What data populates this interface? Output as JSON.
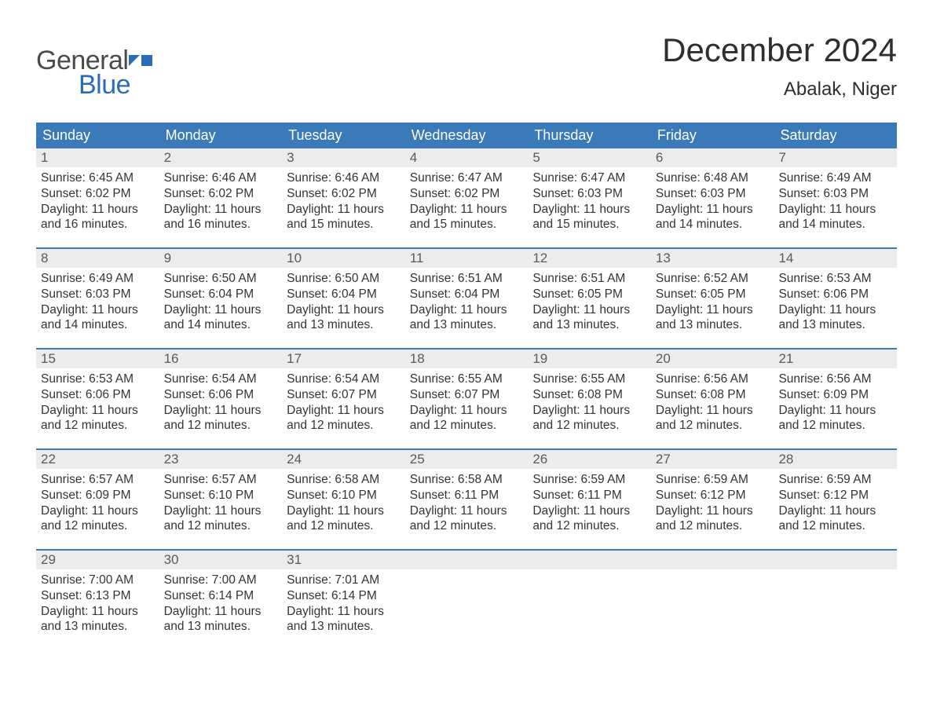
{
  "logo": {
    "general": "General",
    "blue": "Blue"
  },
  "title": "December 2024",
  "location": "Abalak, Niger",
  "colors": {
    "header_bg": "#3a7ab8",
    "header_text": "#ffffff",
    "week_border": "#3a7ab8",
    "daynum_bg": "#ececec",
    "daynum_text": "#5a5a5a",
    "body_text": "#343434",
    "logo_gray": "#4a4a4a",
    "logo_blue": "#2a6db5",
    "page_bg": "#ffffff"
  },
  "typography": {
    "title_fontsize": 42,
    "location_fontsize": 24,
    "weekday_fontsize": 18,
    "daynum_fontsize": 17,
    "body_fontsize": 15.5,
    "logo_fontsize": 34
  },
  "weekdays": [
    "Sunday",
    "Monday",
    "Tuesday",
    "Wednesday",
    "Thursday",
    "Friday",
    "Saturday"
  ],
  "weeks": [
    [
      {
        "n": "1",
        "sunrise": "Sunrise: 6:45 AM",
        "sunset": "Sunset: 6:02 PM",
        "d1": "Daylight: 11 hours",
        "d2": "and 16 minutes."
      },
      {
        "n": "2",
        "sunrise": "Sunrise: 6:46 AM",
        "sunset": "Sunset: 6:02 PM",
        "d1": "Daylight: 11 hours",
        "d2": "and 16 minutes."
      },
      {
        "n": "3",
        "sunrise": "Sunrise: 6:46 AM",
        "sunset": "Sunset: 6:02 PM",
        "d1": "Daylight: 11 hours",
        "d2": "and 15 minutes."
      },
      {
        "n": "4",
        "sunrise": "Sunrise: 6:47 AM",
        "sunset": "Sunset: 6:02 PM",
        "d1": "Daylight: 11 hours",
        "d2": "and 15 minutes."
      },
      {
        "n": "5",
        "sunrise": "Sunrise: 6:47 AM",
        "sunset": "Sunset: 6:03 PM",
        "d1": "Daylight: 11 hours",
        "d2": "and 15 minutes."
      },
      {
        "n": "6",
        "sunrise": "Sunrise: 6:48 AM",
        "sunset": "Sunset: 6:03 PM",
        "d1": "Daylight: 11 hours",
        "d2": "and 14 minutes."
      },
      {
        "n": "7",
        "sunrise": "Sunrise: 6:49 AM",
        "sunset": "Sunset: 6:03 PM",
        "d1": "Daylight: 11 hours",
        "d2": "and 14 minutes."
      }
    ],
    [
      {
        "n": "8",
        "sunrise": "Sunrise: 6:49 AM",
        "sunset": "Sunset: 6:03 PM",
        "d1": "Daylight: 11 hours",
        "d2": "and 14 minutes."
      },
      {
        "n": "9",
        "sunrise": "Sunrise: 6:50 AM",
        "sunset": "Sunset: 6:04 PM",
        "d1": "Daylight: 11 hours",
        "d2": "and 14 minutes."
      },
      {
        "n": "10",
        "sunrise": "Sunrise: 6:50 AM",
        "sunset": "Sunset: 6:04 PM",
        "d1": "Daylight: 11 hours",
        "d2": "and 13 minutes."
      },
      {
        "n": "11",
        "sunrise": "Sunrise: 6:51 AM",
        "sunset": "Sunset: 6:04 PM",
        "d1": "Daylight: 11 hours",
        "d2": "and 13 minutes."
      },
      {
        "n": "12",
        "sunrise": "Sunrise: 6:51 AM",
        "sunset": "Sunset: 6:05 PM",
        "d1": "Daylight: 11 hours",
        "d2": "and 13 minutes."
      },
      {
        "n": "13",
        "sunrise": "Sunrise: 6:52 AM",
        "sunset": "Sunset: 6:05 PM",
        "d1": "Daylight: 11 hours",
        "d2": "and 13 minutes."
      },
      {
        "n": "14",
        "sunrise": "Sunrise: 6:53 AM",
        "sunset": "Sunset: 6:06 PM",
        "d1": "Daylight: 11 hours",
        "d2": "and 13 minutes."
      }
    ],
    [
      {
        "n": "15",
        "sunrise": "Sunrise: 6:53 AM",
        "sunset": "Sunset: 6:06 PM",
        "d1": "Daylight: 11 hours",
        "d2": "and 12 minutes."
      },
      {
        "n": "16",
        "sunrise": "Sunrise: 6:54 AM",
        "sunset": "Sunset: 6:06 PM",
        "d1": "Daylight: 11 hours",
        "d2": "and 12 minutes."
      },
      {
        "n": "17",
        "sunrise": "Sunrise: 6:54 AM",
        "sunset": "Sunset: 6:07 PM",
        "d1": "Daylight: 11 hours",
        "d2": "and 12 minutes."
      },
      {
        "n": "18",
        "sunrise": "Sunrise: 6:55 AM",
        "sunset": "Sunset: 6:07 PM",
        "d1": "Daylight: 11 hours",
        "d2": "and 12 minutes."
      },
      {
        "n": "19",
        "sunrise": "Sunrise: 6:55 AM",
        "sunset": "Sunset: 6:08 PM",
        "d1": "Daylight: 11 hours",
        "d2": "and 12 minutes."
      },
      {
        "n": "20",
        "sunrise": "Sunrise: 6:56 AM",
        "sunset": "Sunset: 6:08 PM",
        "d1": "Daylight: 11 hours",
        "d2": "and 12 minutes."
      },
      {
        "n": "21",
        "sunrise": "Sunrise: 6:56 AM",
        "sunset": "Sunset: 6:09 PM",
        "d1": "Daylight: 11 hours",
        "d2": "and 12 minutes."
      }
    ],
    [
      {
        "n": "22",
        "sunrise": "Sunrise: 6:57 AM",
        "sunset": "Sunset: 6:09 PM",
        "d1": "Daylight: 11 hours",
        "d2": "and 12 minutes."
      },
      {
        "n": "23",
        "sunrise": "Sunrise: 6:57 AM",
        "sunset": "Sunset: 6:10 PM",
        "d1": "Daylight: 11 hours",
        "d2": "and 12 minutes."
      },
      {
        "n": "24",
        "sunrise": "Sunrise: 6:58 AM",
        "sunset": "Sunset: 6:10 PM",
        "d1": "Daylight: 11 hours",
        "d2": "and 12 minutes."
      },
      {
        "n": "25",
        "sunrise": "Sunrise: 6:58 AM",
        "sunset": "Sunset: 6:11 PM",
        "d1": "Daylight: 11 hours",
        "d2": "and 12 minutes."
      },
      {
        "n": "26",
        "sunrise": "Sunrise: 6:59 AM",
        "sunset": "Sunset: 6:11 PM",
        "d1": "Daylight: 11 hours",
        "d2": "and 12 minutes."
      },
      {
        "n": "27",
        "sunrise": "Sunrise: 6:59 AM",
        "sunset": "Sunset: 6:12 PM",
        "d1": "Daylight: 11 hours",
        "d2": "and 12 minutes."
      },
      {
        "n": "28",
        "sunrise": "Sunrise: 6:59 AM",
        "sunset": "Sunset: 6:12 PM",
        "d1": "Daylight: 11 hours",
        "d2": "and 12 minutes."
      }
    ],
    [
      {
        "n": "29",
        "sunrise": "Sunrise: 7:00 AM",
        "sunset": "Sunset: 6:13 PM",
        "d1": "Daylight: 11 hours",
        "d2": "and 13 minutes."
      },
      {
        "n": "30",
        "sunrise": "Sunrise: 7:00 AM",
        "sunset": "Sunset: 6:14 PM",
        "d1": "Daylight: 11 hours",
        "d2": "and 13 minutes."
      },
      {
        "n": "31",
        "sunrise": "Sunrise: 7:01 AM",
        "sunset": "Sunset: 6:14 PM",
        "d1": "Daylight: 11 hours",
        "d2": "and 13 minutes."
      },
      {
        "empty": true
      },
      {
        "empty": true
      },
      {
        "empty": true
      },
      {
        "empty": true
      }
    ]
  ]
}
